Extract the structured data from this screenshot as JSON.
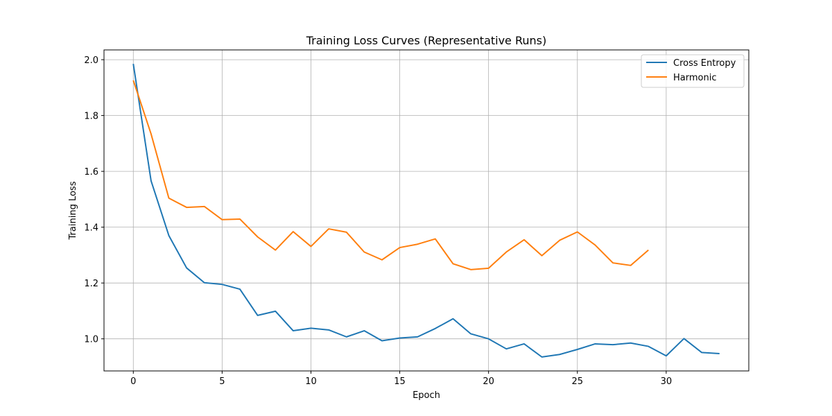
{
  "chart_data": {
    "type": "line",
    "title": "Training Loss Curves (Representative Runs)",
    "xlabel": "Epoch",
    "ylabel": "Training Loss",
    "xlim": [
      -1.65,
      34.65
    ],
    "ylim": [
      0.885,
      2.035
    ],
    "xticks": [
      0,
      5,
      10,
      15,
      20,
      25,
      30
    ],
    "yticks": [
      1.0,
      1.2,
      1.4,
      1.6,
      1.8,
      2.0
    ],
    "ytick_labels": [
      "1.0",
      "1.2",
      "1.4",
      "1.6",
      "1.8",
      "2.0"
    ],
    "grid": true,
    "legend_position": "top-right",
    "series": [
      {
        "name": "Cross Entropy",
        "color": "#1f77b4",
        "x": [
          0,
          1,
          2,
          3,
          4,
          5,
          6,
          7,
          8,
          9,
          10,
          11,
          12,
          13,
          14,
          15,
          16,
          17,
          18,
          19,
          20,
          21,
          22,
          23,
          24,
          25,
          26,
          27,
          28,
          29,
          30,
          31,
          32,
          33
        ],
        "values": [
          1.985,
          1.566,
          1.37,
          1.254,
          1.201,
          1.195,
          1.178,
          1.084,
          1.099,
          1.029,
          1.038,
          1.032,
          1.007,
          1.029,
          0.993,
          1.003,
          1.007,
          1.037,
          1.072,
          1.018,
          1.0,
          0.964,
          0.982,
          0.935,
          0.944,
          0.962,
          0.982,
          0.979,
          0.985,
          0.973,
          0.939,
          1.001,
          0.951,
          0.947
        ]
      },
      {
        "name": "Harmonic",
        "color": "#ff7f0e",
        "x": [
          0,
          1,
          2,
          3,
          4,
          5,
          6,
          7,
          8,
          9,
          10,
          11,
          12,
          13,
          14,
          15,
          16,
          17,
          18,
          19,
          20,
          21,
          22,
          23,
          24,
          25,
          26,
          27,
          28,
          29
        ],
        "values": [
          1.926,
          1.734,
          1.504,
          1.471,
          1.474,
          1.427,
          1.429,
          1.365,
          1.318,
          1.384,
          1.331,
          1.394,
          1.382,
          1.311,
          1.283,
          1.327,
          1.339,
          1.358,
          1.269,
          1.248,
          1.253,
          1.311,
          1.355,
          1.298,
          1.353,
          1.383,
          1.336,
          1.272,
          1.263,
          1.318
        ]
      }
    ]
  }
}
